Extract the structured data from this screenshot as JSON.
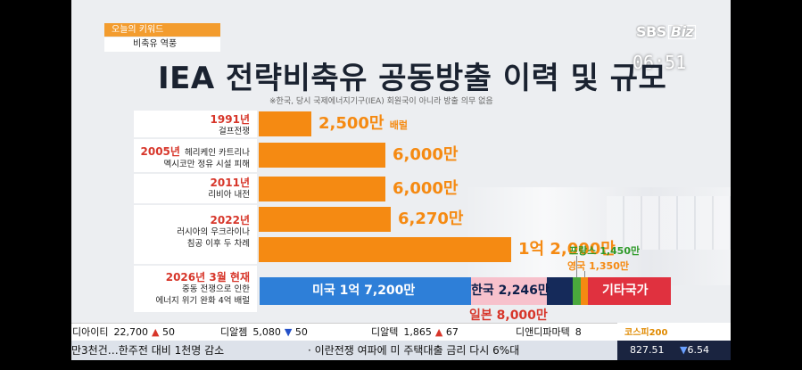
{
  "keyword": {
    "header": "오늘의 키워드",
    "topic": "비축유 역풍"
  },
  "broadcaster": {
    "logo_main": "SBS",
    "logo_sub": "Biz",
    "clock": "06:51"
  },
  "title": "IEA 전략비축유 공동방출 이력 및 규모",
  "note": "※한국, 당시 국제에너지기구(IEA) 회원국이 아니라 방출 의무 없음",
  "rows": [
    {
      "year": "1991년",
      "event": "걸프전쟁",
      "value": "2,500만",
      "unit": "배럴",
      "amount": 2500
    },
    {
      "year": "2005년",
      "event_inline": "헤리케인 카트리나",
      "event": "멕시코만 정유 시설 피해",
      "value": "6,000만",
      "amount": 6000
    },
    {
      "year": "2011년",
      "event": "리비아 내전",
      "value": "6,000만",
      "amount": 6000
    },
    {
      "year": "2022년",
      "event": "러시아의 우크라이나",
      "event2": "침공 이후 두 차례",
      "value": "6,270만",
      "amount": 6270
    },
    {
      "value": "1억 2,000만",
      "amount": 12000
    }
  ],
  "current": {
    "date": "2026년 3월 현재",
    "event": "중동 전쟁으로 인한",
    "event2": "에너지 위기 완화 4억 배럴",
    "segments": {
      "us": {
        "label": "미국 1억 7,200만",
        "amount": 17200,
        "color": "#2e7fd8"
      },
      "jp": {
        "label": "일본 8,000만",
        "amount": 8000,
        "color": "#f7c1cc"
      },
      "kr": {
        "label": "한국 2,246만",
        "amount": 2246,
        "color": "#152a5a"
      },
      "fr": {
        "label": "프랑스 1,450만",
        "amount": 1450,
        "color": "#4aa83c"
      },
      "uk": {
        "label": "영국 1,350만",
        "amount": 1350,
        "color": "#f58a12"
      },
      "other": {
        "label": "기타국가",
        "color": "#e0313f"
      }
    }
  },
  "ticker": [
    {
      "name": "디아이티",
      "value": "22,700",
      "dir": "up",
      "change": "50"
    },
    {
      "name": "디알젬",
      "value": "5,080",
      "dir": "down",
      "change": "50"
    },
    {
      "name": "디알텍",
      "value": "1,865",
      "dir": "up",
      "change": "67"
    },
    {
      "name": "디앤디파마텍",
      "value": "8",
      "dir": "",
      "change": ""
    }
  ],
  "index": {
    "name": "코스피200",
    "value": "827.51",
    "dir": "down",
    "change": "6.54"
  },
  "news": [
    "만3천건…한주전 대비 1천명 감소",
    "· 이란전쟁 여파에 미 주택대출 금리 다시 6%대"
  ]
}
